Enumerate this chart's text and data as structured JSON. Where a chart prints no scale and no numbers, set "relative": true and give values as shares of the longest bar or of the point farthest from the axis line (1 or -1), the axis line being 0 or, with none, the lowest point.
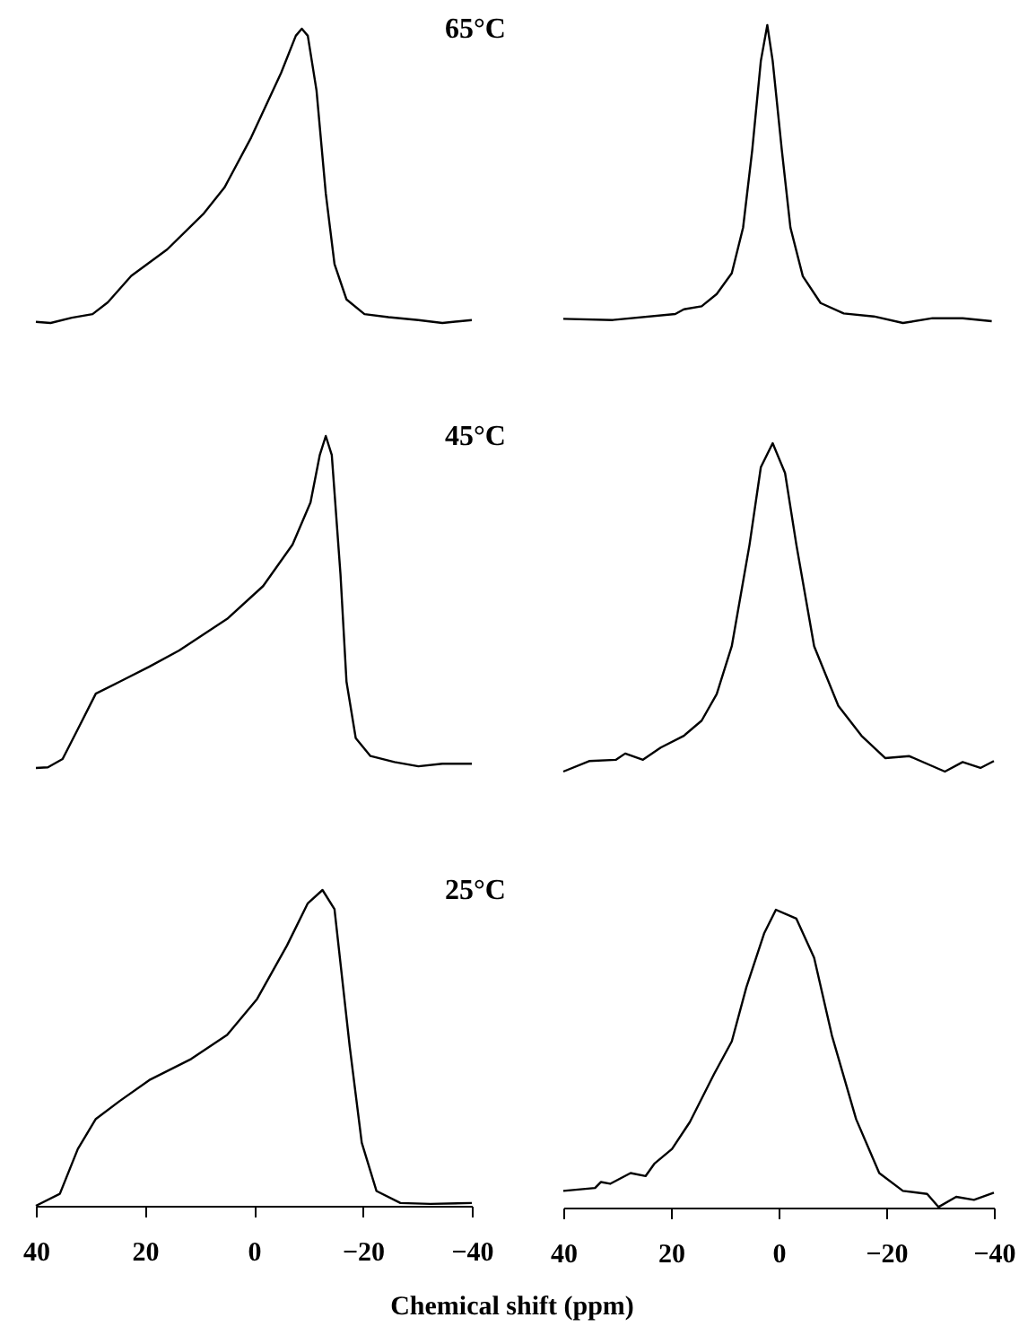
{
  "chart_data": [
    {
      "type": "line",
      "relative": true,
      "annotations": [
        "65°C"
      ],
      "xlim": [
        40,
        -40
      ],
      "xticks": [
        40,
        20,
        0,
        -20,
        -40
      ],
      "tick_labels": false,
      "x": [
        40,
        37.3,
        33.4,
        29.6,
        26.8,
        22.5,
        15.9,
        9.3,
        5.4,
        0.5,
        -5.0,
        -7.7,
        -8.8,
        -9.9,
        -11.5,
        -13.2,
        -14.8,
        -17.0,
        -20.3,
        -24.7,
        -30.2,
        -34.6,
        -40
      ],
      "series": [
        {
          "color": "#000000",
          "values": [
            0.004,
            0,
            0.018,
            0.03,
            0.07,
            0.16,
            0.25,
            0.37,
            0.46,
            0.63,
            0.85,
            0.976,
            1,
            0.976,
            0.79,
            0.44,
            0.2,
            0.08,
            0.03,
            0.02,
            0.01,
            0,
            0.01
          ]
        }
      ]
    },
    {
      "type": "line",
      "relative": true,
      "xlim": [
        40,
        -40
      ],
      "xticks": [
        40,
        20,
        0,
        -20,
        -40
      ],
      "tick_labels": false,
      "x": [
        40,
        30.8,
        19.2,
        17.6,
        14.3,
        11.5,
        8.7,
        6.6,
        4.9,
        3.3,
        2.1,
        1.1,
        -0.6,
        -2.2,
        -4.5,
        -7.8,
        -12.1,
        -17.7,
        -23.1,
        -28.6,
        -34.2,
        -39.6
      ],
      "series": [
        {
          "color": "#000000",
          "values": [
            0.014,
            0.01,
            0.03,
            0.046,
            0.056,
            0.097,
            0.167,
            0.32,
            0.58,
            0.88,
            1,
            0.88,
            0.58,
            0.32,
            0.157,
            0.067,
            0.032,
            0.022,
            0,
            0.016,
            0.016,
            0.006
          ]
        }
      ]
    },
    {
      "type": "line",
      "relative": true,
      "annotations": [
        "45°C"
      ],
      "xlim": [
        40,
        -40
      ],
      "xticks": [
        40,
        20,
        0,
        -20,
        -40
      ],
      "tick_labels": false,
      "x": [
        40,
        37.8,
        35.1,
        32.3,
        29.0,
        24.6,
        19.2,
        13.7,
        4.9,
        -1.7,
        -7.1,
        -10.4,
        -12.1,
        -13.2,
        -14.3,
        -15.9,
        -17.0,
        -18.7,
        -21.4,
        -25.8,
        -30.2,
        -34.6,
        -40
      ],
      "series": [
        {
          "color": "#000000",
          "values": [
            0,
            0.002,
            0.027,
            0.117,
            0.224,
            0.26,
            0.305,
            0.354,
            0.449,
            0.548,
            0.673,
            0.8,
            0.943,
            1,
            0.943,
            0.583,
            0.26,
            0.09,
            0.036,
            0.018,
            0.005,
            0.013,
            0.013
          ]
        }
      ]
    },
    {
      "type": "line",
      "relative": true,
      "xlim": [
        40,
        -40
      ],
      "xticks": [
        40,
        20,
        0,
        -20,
        -40
      ],
      "tick_labels": false,
      "x": [
        40,
        35.2,
        30.2,
        28.5,
        25.2,
        21.9,
        17.6,
        14.3,
        11.5,
        8.7,
        5.4,
        3.3,
        1.1,
        -1.2,
        -3.3,
        -6.6,
        -11.1,
        -15.4,
        -19.8,
        -24.3,
        -30.9,
        -34.2,
        -37.5,
        -40
      ],
      "series": [
        {
          "color": "#000000",
          "values": [
            0,
            0.032,
            0.036,
            0.055,
            0.036,
            0.073,
            0.109,
            0.155,
            0.236,
            0.382,
            0.691,
            0.927,
            1,
            0.909,
            0.691,
            0.382,
            0.2,
            0.109,
            0.041,
            0.047,
            0,
            0.029,
            0.011,
            0.032
          ]
        }
      ]
    },
    {
      "type": "line",
      "relative": true,
      "annotations": [
        "25°C"
      ],
      "xlabel": "Chemical shift (ppm)",
      "xlim": [
        40,
        -40
      ],
      "xticks": [
        40,
        20,
        0,
        -20,
        -40
      ],
      "tick_labels": "x",
      "x": [
        40,
        35.6,
        32.3,
        29.0,
        24.6,
        19.2,
        11.5,
        4.9,
        -0.6,
        -6.1,
        -9.9,
        -12.6,
        -14.8,
        -17.6,
        -19.8,
        -22.5,
        -26.9,
        -32.4,
        -40
      ],
      "series": [
        {
          "color": "#000000",
          "values": [
            0,
            0.038,
            0.18,
            0.275,
            0.332,
            0.398,
            0.465,
            0.541,
            0.655,
            0.825,
            0.958,
            1,
            0.939,
            0.503,
            0.2,
            0.047,
            0.009,
            0.006,
            0.009
          ]
        }
      ]
    },
    {
      "type": "line",
      "relative": true,
      "xlim": [
        40,
        -40
      ],
      "xticks": [
        40,
        20,
        0,
        -20,
        -40
      ],
      "tick_labels": "x",
      "x": [
        40,
        34.1,
        33.0,
        31.3,
        27.5,
        24.7,
        23.1,
        19.8,
        16.5,
        12.0,
        8.7,
        6.0,
        2.7,
        0.5,
        -3.3,
        -6.6,
        -9.9,
        -14.4,
        -18.7,
        -23.1,
        -27.6,
        -29.7,
        -33.0,
        -36.3,
        -40
      ],
      "series": [
        {
          "color": "#000000",
          "values": [
            0.056,
            0.066,
            0.086,
            0.08,
            0.116,
            0.106,
            0.147,
            0.197,
            0.287,
            0.448,
            0.558,
            0.739,
            0.92,
            1,
            0.97,
            0.839,
            0.578,
            0.297,
            0.116,
            0.056,
            0.046,
            0.002,
            0.036,
            0.026,
            0.05
          ]
        }
      ]
    }
  ]
}
